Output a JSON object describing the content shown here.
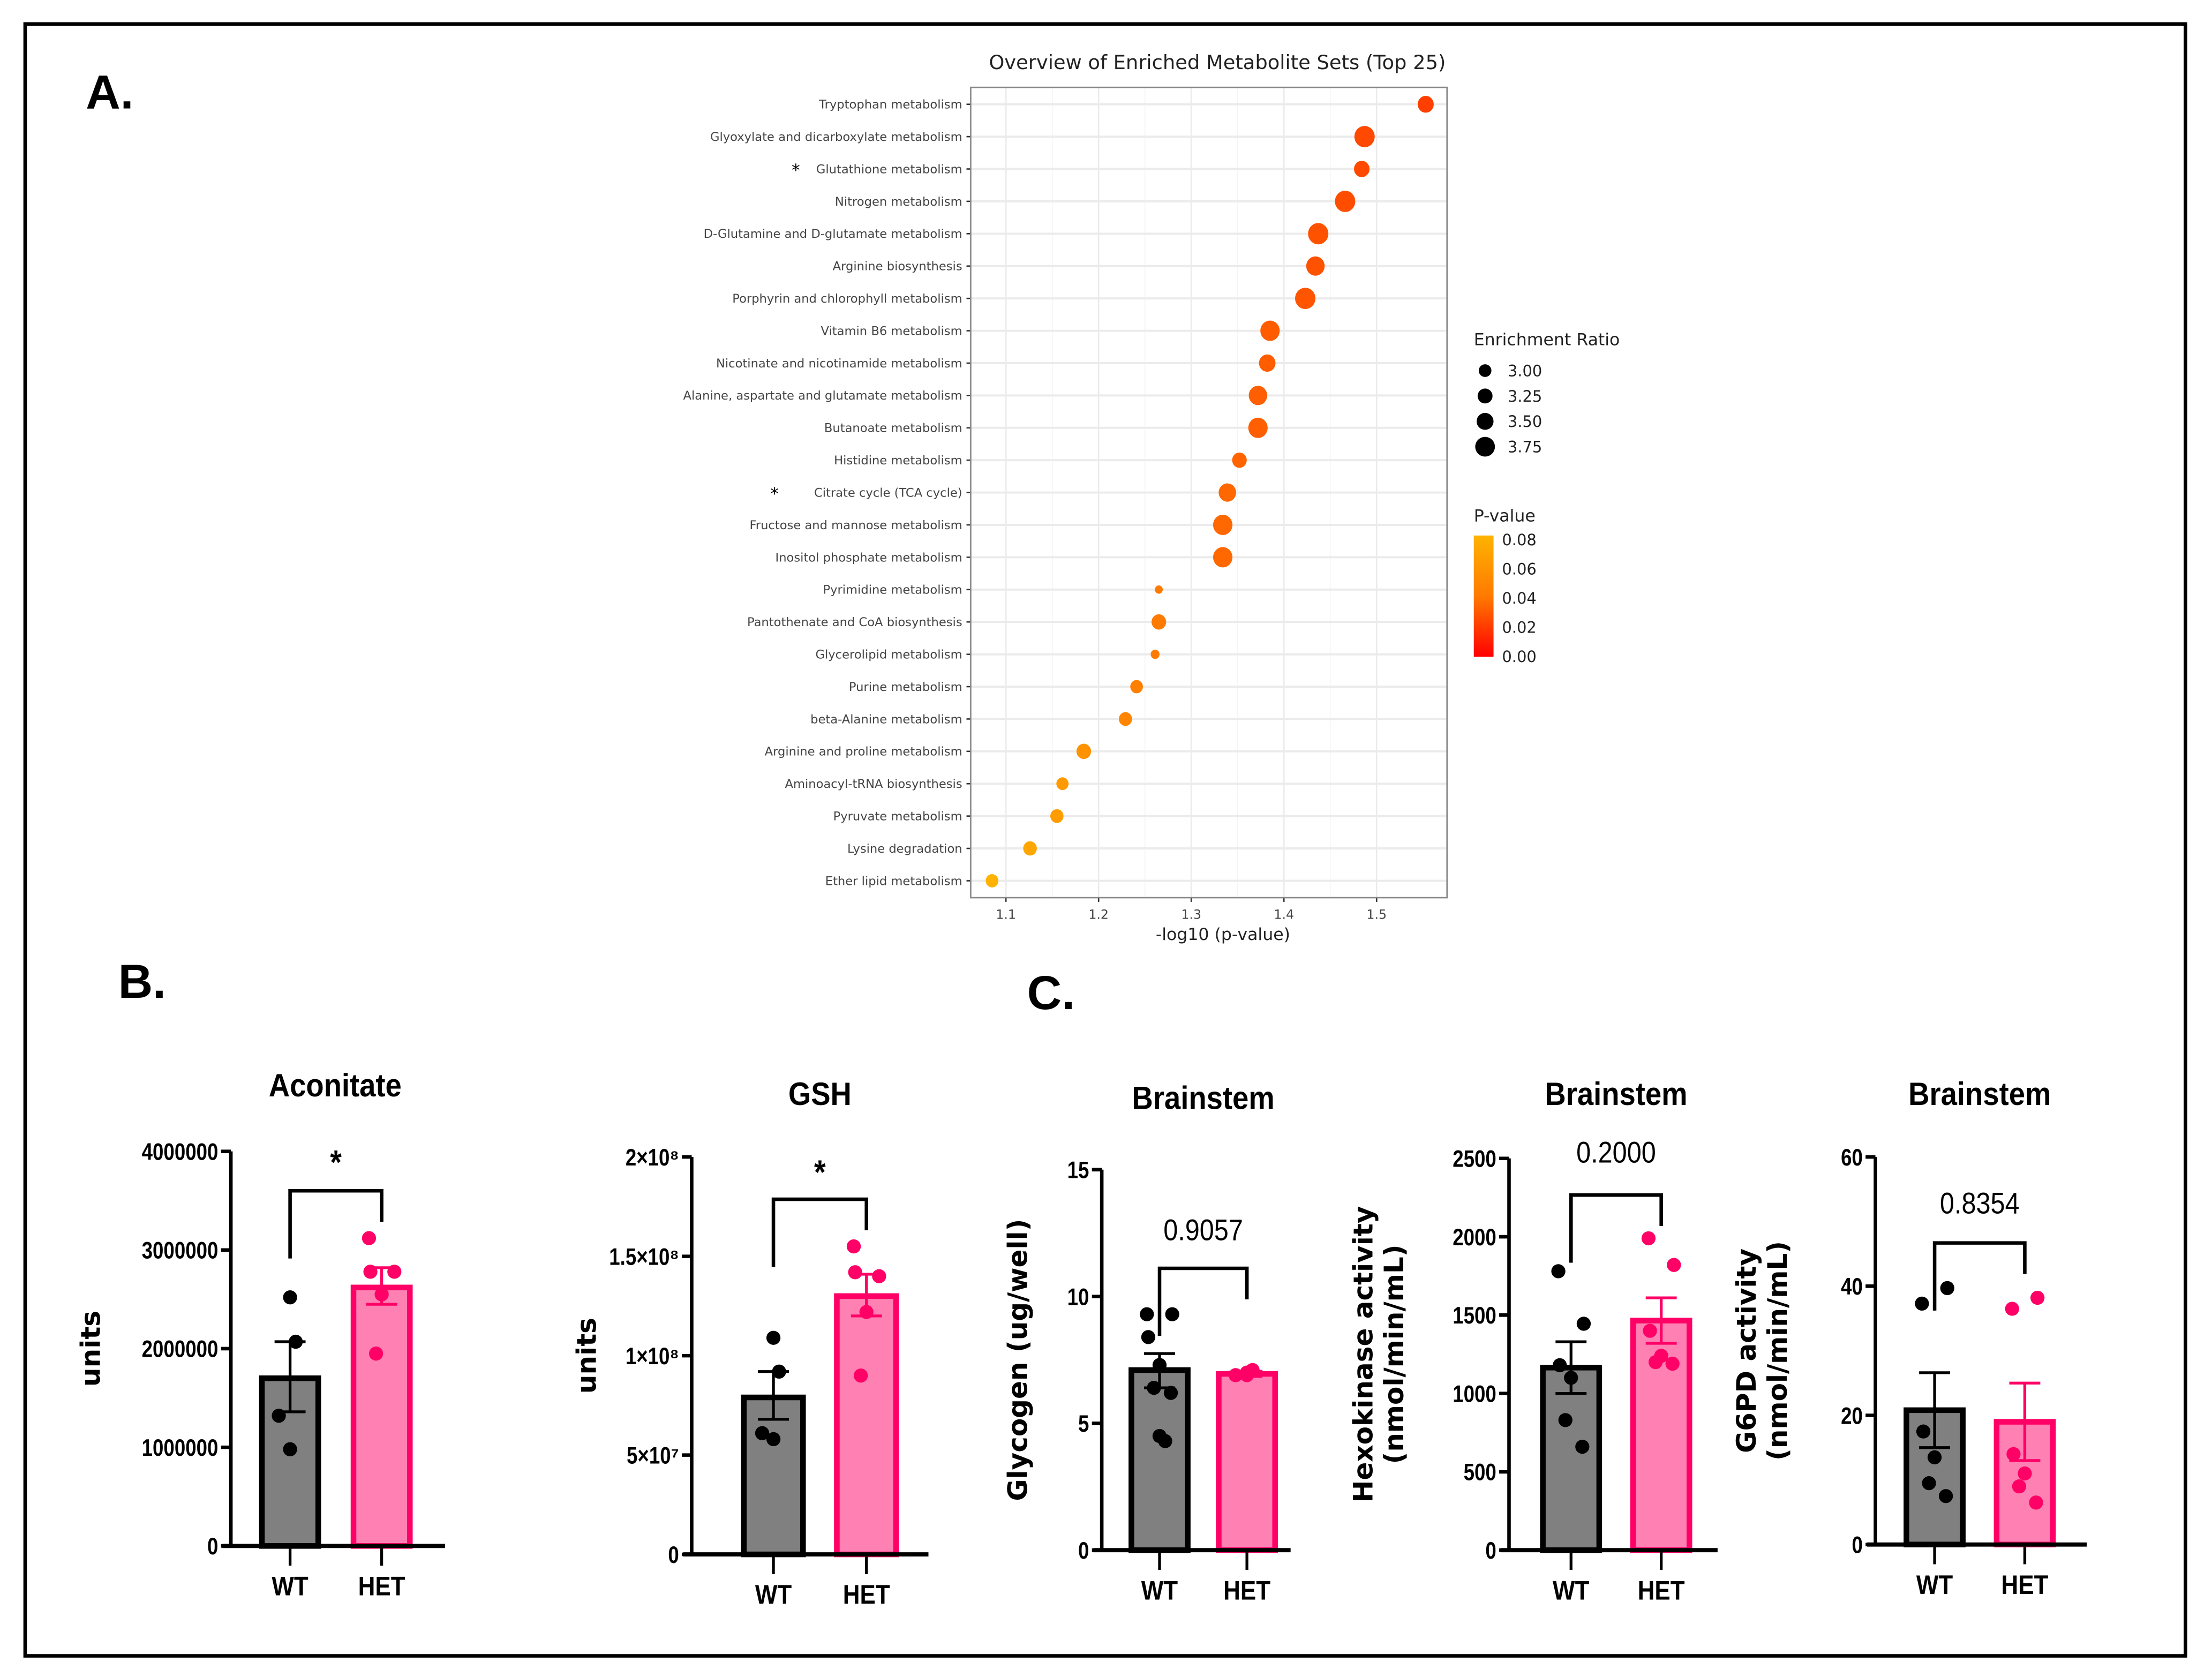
{
  "panel_labels": {
    "a": "A.",
    "b": "B.",
    "c": "C."
  },
  "chart_data": [
    {
      "type": "scatter",
      "title": "Overview of Enriched Metabolite Sets (Top 25)",
      "xlabel": "-log10 (p-value)",
      "xlim": [
        1.062,
        1.576
      ],
      "xticks": [
        1.1,
        1.2,
        1.3,
        1.4,
        1.5
      ],
      "grid": true,
      "categories": [
        "Tryptophan metabolism",
        "Glyoxylate and dicarboxylate metabolism",
        "Glutathione metabolism",
        "Nitrogen metabolism",
        "D-Glutamine and D-glutamate metabolism",
        "Arginine biosynthesis",
        "Porphyrin and chlorophyll metabolism",
        "Vitamin B6 metabolism",
        "Nicotinate and nicotinamide metabolism",
        "Alanine, aspartate and glutamate metabolism",
        "Butanoate metabolism",
        "Histidine metabolism",
        "Citrate cycle (TCA cycle)",
        "Fructose and mannose metabolism",
        "Inositol phosphate metabolism",
        "Pyrimidine metabolism",
        "Pantothenate and CoA biosynthesis",
        "Glycerolipid metabolism",
        "Purine metabolism",
        "beta-Alanine metabolism",
        "Arginine and proline metabolism",
        "Aminoacyl-tRNA biosynthesis",
        "Pyruvate metabolism",
        "Lysine degradation",
        "Ether lipid metabolism"
      ],
      "markers": [
        "",
        "",
        "*",
        "",
        "",
        "",
        "",
        "",
        "",
        "",
        "",
        "",
        "*",
        "",
        "",
        "",
        "",
        "",
        "",
        "",
        "",
        "",
        "",
        "",
        ""
      ],
      "x": [
        1.553,
        1.487,
        1.484,
        1.466,
        1.437,
        1.434,
        1.423,
        1.385,
        1.382,
        1.372,
        1.372,
        1.352,
        1.339,
        1.334,
        1.334,
        1.265,
        1.265,
        1.261,
        1.241,
        1.229,
        1.184,
        1.161,
        1.155,
        1.126,
        1.085
      ],
      "enrichment_ratio": [
        3.35,
        3.8,
        3.3,
        3.8,
        3.8,
        3.6,
        3.8,
        3.7,
        3.4,
        3.6,
        3.7,
        3.2,
        3.5,
        3.7,
        3.7,
        2.5,
        3.2,
        2.6,
        3.0,
        3.05,
        3.2,
        2.95,
        3.05,
        3.1,
        3.0
      ],
      "size_legend": {
        "title": "Enrichment Ratio",
        "values": [
          "3.00",
          "3.25",
          "3.50",
          "3.75"
        ]
      },
      "color_legend": {
        "title": "P-value",
        "values": [
          "0.08",
          "0.06",
          "0.04",
          "0.02",
          "0.00"
        ],
        "low_color": "#ff0000",
        "high_color": "#ffb300"
      }
    },
    {
      "type": "bar",
      "title": "Aconitate",
      "ylabel": [
        "units"
      ],
      "ylim": [
        0,
        4000000
      ],
      "yticks": [
        0,
        1000000,
        2000000,
        3000000,
        4000000
      ],
      "ytick_labels": [
        "0",
        "1000000",
        "2000000",
        "3000000",
        "4000000"
      ],
      "categories": [
        "WT",
        "HET"
      ],
      "means": [
        1700000,
        2620000
      ],
      "sem": [
        [
          1360000,
          2070000
        ],
        [
          2450000,
          2820000
        ]
      ],
      "points": [
        [
          2520000,
          2070000,
          1320000,
          980000
        ],
        [
          3120000,
          2780000,
          2780000,
          2550000,
          1950000
        ]
      ],
      "annotation": "*"
    },
    {
      "type": "bar",
      "title": "GSH",
      "ylabel": [
        "units"
      ],
      "ylim": [
        0,
        200000000
      ],
      "yticks": [
        0,
        50000000,
        100000000,
        150000000,
        200000000
      ],
      "ytick_labels": [
        "0",
        "5×10⁷",
        "1×10⁸",
        "1.5×10⁸",
        "2×10⁸"
      ],
      "categories": [
        "WT",
        "HET"
      ],
      "means": [
        79000000,
        130000000
      ],
      "sem": [
        [
          68000000,
          92000000
        ],
        [
          120000000,
          141000000
        ]
      ],
      "points": [
        [
          109000000,
          92000000,
          61000000,
          58000000
        ],
        [
          155000000,
          140000000,
          142000000,
          122000000,
          90000000
        ]
      ],
      "annotation": "*"
    },
    {
      "type": "bar",
      "title": "Brainstem",
      "ylabel": [
        "Glycogen (ug/well)"
      ],
      "ylim": [
        0,
        15
      ],
      "yticks": [
        0,
        5,
        10,
        15
      ],
      "ytick_labels": [
        "0",
        "5",
        "10",
        "15"
      ],
      "categories": [
        "WT",
        "HET"
      ],
      "means": [
        7.1,
        6.95
      ],
      "sem": [
        [
          6.4,
          7.75
        ],
        [
          6.85,
          7.05
        ]
      ],
      "points": [
        [
          9.3,
          9.3,
          8.4,
          7.3,
          6.4,
          6.2,
          4.5,
          4.3
        ],
        [
          7.0,
          7.1,
          6.9,
          6.9
        ]
      ],
      "annotation": "0.9057"
    },
    {
      "type": "bar",
      "title": "Brainstem",
      "ylabel": [
        "Hexokinase activity",
        "(nmol/min/mL)"
      ],
      "ylim": [
        0,
        2500
      ],
      "yticks": [
        0,
        500,
        1000,
        1500,
        2000,
        2500
      ],
      "ytick_labels": [
        "0",
        "500",
        "1000",
        "1500",
        "2000",
        "2500"
      ],
      "categories": [
        "WT",
        "HET"
      ],
      "means": [
        1165,
        1465
      ],
      "sem": [
        [
          1000,
          1330
        ],
        [
          1320,
          1610
        ]
      ],
      "points": [
        [
          1780,
          1445,
          1180,
          1100,
          830,
          660
        ],
        [
          1990,
          1820,
          1400,
          1240,
          1200,
          1190
        ]
      ],
      "annotation": "0.2000"
    },
    {
      "type": "bar",
      "title": "Brainstem",
      "ylabel": [
        "G6PD activity",
        "(nmol/min/mL)"
      ],
      "ylim": [
        0,
        60
      ],
      "yticks": [
        0,
        20,
        40,
        60
      ],
      "ytick_labels": [
        "0",
        "20",
        "40",
        "60"
      ],
      "categories": [
        "WT",
        "HET"
      ],
      "means": [
        20.8,
        19.0
      ],
      "sem": [
        [
          15,
          26.6
        ],
        [
          13,
          25
        ]
      ],
      "points": [
        [
          37.3,
          39.7,
          17.5,
          13.5,
          9.5,
          7.5
        ],
        [
          36.5,
          38.2,
          14,
          11,
          9,
          6.5
        ]
      ],
      "annotation": "0.8354"
    }
  ],
  "colors": {
    "wt_fill": "#808080",
    "wt_stroke": "#000000",
    "het_fill": "#ff80b3",
    "het_stroke": "#ff0066"
  }
}
